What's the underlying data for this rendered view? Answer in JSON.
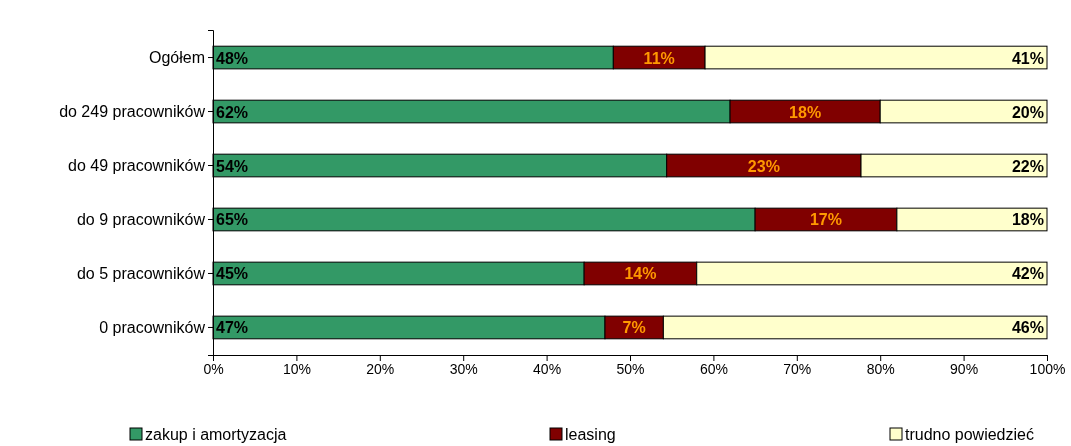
{
  "chart_data": {
    "type": "bar",
    "orientation": "horizontal",
    "stacked": true,
    "categories": [
      "Ogółem",
      "do 249 pracowników",
      "do 49 pracowników",
      "do 9 pracowników",
      "do 5 pracowników",
      "0 pracowników"
    ],
    "series": [
      {
        "name": "zakup i amortyzacja",
        "color": "#339966",
        "values": [
          48,
          62,
          54.4,
          65,
          44.5,
          47
        ],
        "value_labels": [
          "48%",
          "62%",
          "54%",
          "65%",
          "45%",
          "47%"
        ]
      },
      {
        "name": "leasing",
        "color": "#800000",
        "values": [
          11,
          18,
          23.3,
          17,
          13.5,
          7
        ],
        "value_labels": [
          "11%",
          "18%",
          "23%",
          "17%",
          "14%",
          "7%"
        ]
      },
      {
        "name": "trudno powiedzieć",
        "color": "#ffffcc",
        "values": [
          41,
          20,
          22.3,
          18,
          42,
          46
        ],
        "value_labels": [
          "41%",
          "20%",
          "22%",
          "18%",
          "42%",
          "46%"
        ]
      }
    ],
    "xlim": [
      0,
      100
    ],
    "xticks": [
      {
        "value": 0,
        "label": "0%"
      },
      {
        "value": 10,
        "label": "10%"
      },
      {
        "value": 20,
        "label": "20%"
      },
      {
        "value": 30,
        "label": "30%"
      },
      {
        "value": 40,
        "label": "40%"
      },
      {
        "value": 50,
        "label": "50%"
      },
      {
        "value": 60,
        "label": "60%"
      },
      {
        "value": 70,
        "label": "70%"
      },
      {
        "value": 80,
        "label": "80%"
      },
      {
        "value": 90,
        "label": "90%"
      },
      {
        "value": 100,
        "label": "100%"
      }
    ],
    "legend": "bottom",
    "grid": false
  }
}
